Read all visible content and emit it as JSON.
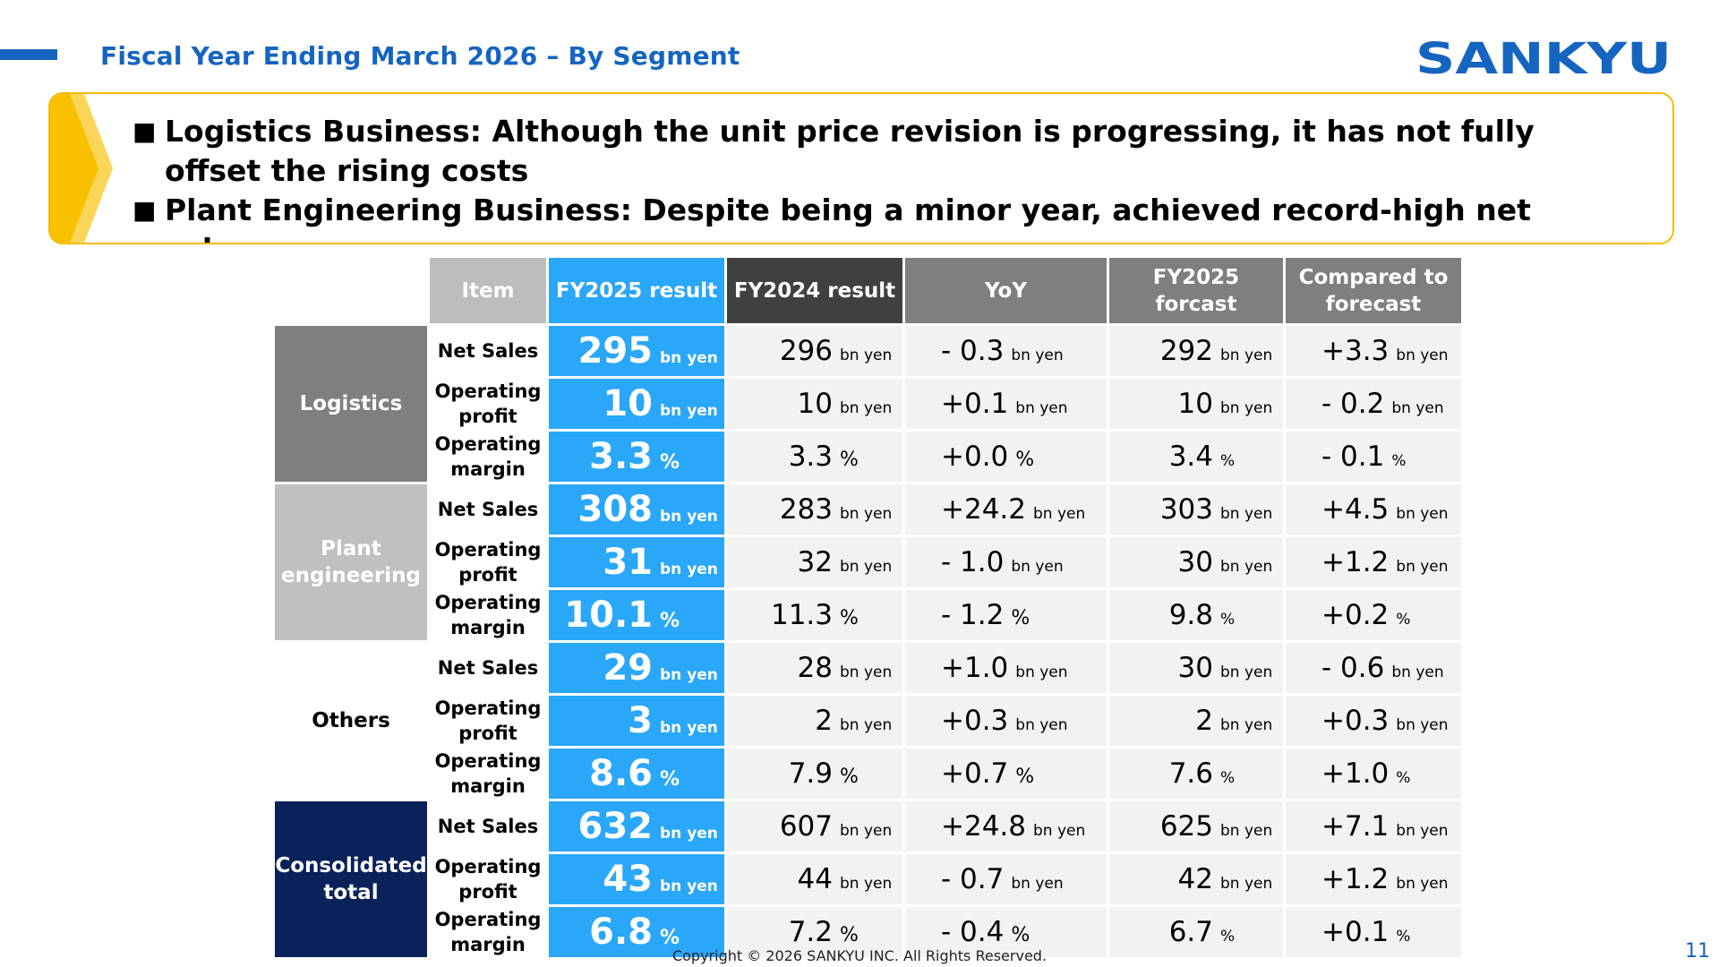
{
  "header": {
    "title": "Fiscal Year Ending March 2026 – By Segment",
    "logo_text": "SANKYU"
  },
  "summary": [
    {
      "bullet": "■",
      "text": "Logistics Business: Although the unit price revision is progressing, it has not fully offset the rising costs"
    },
    {
      "bullet": "■",
      "text": "Plant Engineering Business: Despite being a minor year, achieved record-high net sales"
    }
  ],
  "table": {
    "headers": {
      "item": "Item",
      "fy2025_result": "FY2025 result",
      "fy2024_result": "FY2024 result",
      "yoy": "YoY",
      "fy2025_forecast": "FY2025 forcast",
      "vs_forecast": "Compared to forecast"
    },
    "segments": [
      {
        "name": "Logistics",
        "rows": [
          {
            "item": "Net Sales",
            "fy25": {
              "num": "295",
              "unit": "bn yen"
            },
            "fy24": {
              "num": "296",
              "unit": "bn yen"
            },
            "yoy": {
              "num": "- 0.3",
              "unit": "bn yen"
            },
            "fcst": {
              "num": "292",
              "unit": "bn yen"
            },
            "vs": {
              "num": "+3.3",
              "unit": "bn yen"
            }
          },
          {
            "item": "Operating profit",
            "fy25": {
              "num": "10",
              "unit": "bn yen"
            },
            "fy24": {
              "num": "10",
              "unit": "bn yen"
            },
            "yoy": {
              "num": "+0.1",
              "unit": "bn yen"
            },
            "fcst": {
              "num": "10",
              "unit": "bn yen"
            },
            "vs": {
              "num": "- 0.2",
              "unit": "bn yen"
            }
          },
          {
            "item": "Operating margin",
            "fy25": {
              "num": "3.3",
              "unit": "%"
            },
            "fy24": {
              "num": "3.3",
              "unit": "%"
            },
            "yoy": {
              "num": "+0.0",
              "unit": "%"
            },
            "fcst": {
              "num": "3.4",
              "unit": "%"
            },
            "vs": {
              "num": "- 0.1",
              "unit": "%"
            }
          }
        ]
      },
      {
        "name": "Plant engineering",
        "rows": [
          {
            "item": "Net Sales",
            "fy25": {
              "num": "308",
              "unit": "bn yen"
            },
            "fy24": {
              "num": "283",
              "unit": "bn yen"
            },
            "yoy": {
              "num": "+24.2",
              "unit": "bn yen"
            },
            "fcst": {
              "num": "303",
              "unit": "bn yen"
            },
            "vs": {
              "num": "+4.5",
              "unit": "bn yen"
            }
          },
          {
            "item": "Operating profit",
            "fy25": {
              "num": "31",
              "unit": "bn yen"
            },
            "fy24": {
              "num": "32",
              "unit": "bn yen"
            },
            "yoy": {
              "num": "- 1.0",
              "unit": "bn yen"
            },
            "fcst": {
              "num": "30",
              "unit": "bn yen"
            },
            "vs": {
              "num": "+1.2",
              "unit": "bn yen"
            }
          },
          {
            "item": "Operating margin",
            "fy25": {
              "num": "10.1",
              "unit": "%"
            },
            "fy24": {
              "num": "11.3",
              "unit": "%"
            },
            "yoy": {
              "num": "- 1.2",
              "unit": "%"
            },
            "fcst": {
              "num": "9.8",
              "unit": "%"
            },
            "vs": {
              "num": "+0.2",
              "unit": "%"
            }
          }
        ]
      },
      {
        "name": "Others",
        "rows": [
          {
            "item": "Net Sales",
            "fy25": {
              "num": "29",
              "unit": "bn yen"
            },
            "fy24": {
              "num": "28",
              "unit": "bn yen"
            },
            "yoy": {
              "num": "+1.0",
              "unit": "bn yen"
            },
            "fcst": {
              "num": "30",
              "unit": "bn yen"
            },
            "vs": {
              "num": "- 0.6",
              "unit": "bn yen"
            }
          },
          {
            "item": "Operating profit",
            "fy25": {
              "num": "3",
              "unit": "bn yen"
            },
            "fy24": {
              "num": "2",
              "unit": "bn yen"
            },
            "yoy": {
              "num": "+0.3",
              "unit": "bn yen"
            },
            "fcst": {
              "num": "2",
              "unit": "bn yen"
            },
            "vs": {
              "num": "+0.3",
              "unit": "bn yen"
            }
          },
          {
            "item": "Operating margin",
            "fy25": {
              "num": "8.6",
              "unit": "%"
            },
            "fy24": {
              "num": "7.9",
              "unit": "%"
            },
            "yoy": {
              "num": "+0.7",
              "unit": "%"
            },
            "fcst": {
              "num": "7.6",
              "unit": "%"
            },
            "vs": {
              "num": "+1.0",
              "unit": "%"
            }
          }
        ]
      },
      {
        "name": "Consolidated total",
        "rows": [
          {
            "item": "Net Sales",
            "fy25": {
              "num": "632",
              "unit": "bn yen"
            },
            "fy24": {
              "num": "607",
              "unit": "bn yen"
            },
            "yoy": {
              "num": "+24.8",
              "unit": "bn yen"
            },
            "fcst": {
              "num": "625",
              "unit": "bn yen"
            },
            "vs": {
              "num": "+7.1",
              "unit": "bn yen"
            }
          },
          {
            "item": "Operating profit",
            "fy25": {
              "num": "43",
              "unit": "bn yen"
            },
            "fy24": {
              "num": "44",
              "unit": "bn yen"
            },
            "yoy": {
              "num": "- 0.7",
              "unit": "bn yen"
            },
            "fcst": {
              "num": "42",
              "unit": "bn yen"
            },
            "vs": {
              "num": "+1.2",
              "unit": "bn yen"
            }
          },
          {
            "item": "Operating margin",
            "fy25": {
              "num": "6.8",
              "unit": "%"
            },
            "fy24": {
              "num": "7.2",
              "unit": "%"
            },
            "yoy": {
              "num": "- 0.4",
              "unit": "%"
            },
            "fcst": {
              "num": "6.7",
              "unit": "%"
            },
            "vs": {
              "num": "+0.1",
              "unit": "%"
            }
          }
        ]
      }
    ]
  },
  "footer": {
    "copyright": "Copyright © 2026 SANKYU INC. All Rights Reserved.",
    "page_number": "11"
  },
  "colors": {
    "title_blue": "#1565c0",
    "highlight_blue": "#2aa7f8",
    "summary_border": "#f4bc00",
    "navy": "#0b2159"
  }
}
